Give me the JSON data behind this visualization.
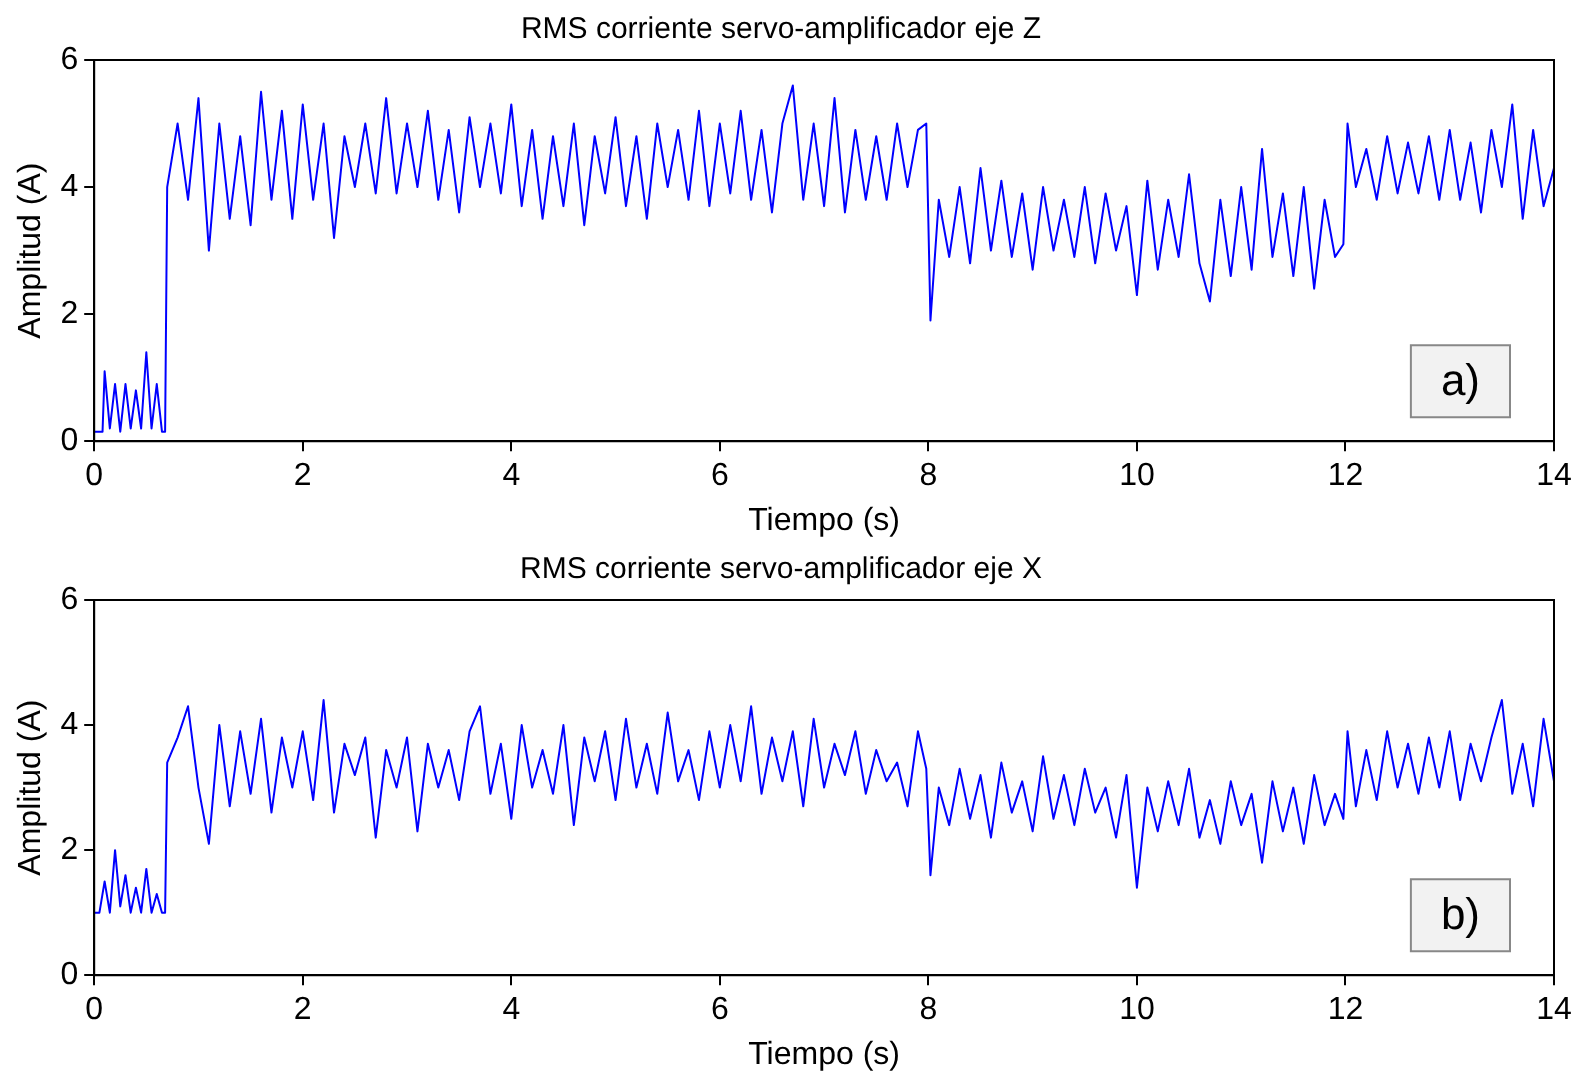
{
  "chart_data": [
    {
      "type": "line",
      "title": "RMS corriente servo-amplificador eje Z",
      "xlabel": "Tiempo (s)",
      "ylabel": "Amplitud (A)",
      "color": "#0000ff",
      "marker": "none",
      "grid": false,
      "xlim": [
        0,
        14
      ],
      "xticks": [
        0,
        2,
        4,
        6,
        8,
        10,
        12,
        14
      ],
      "ylim": [
        0,
        6
      ],
      "yticks": [
        0,
        2,
        4,
        6
      ],
      "annotations": [
        "a)"
      ],
      "x": [
        0,
        0.08,
        0.1,
        0.15,
        0.2,
        0.25,
        0.3,
        0.35,
        0.4,
        0.45,
        0.5,
        0.55,
        0.6,
        0.65,
        0.68,
        0.7,
        0.8,
        0.9,
        1.0,
        1.1,
        1.2,
        1.3,
        1.4,
        1.5,
        1.6,
        1.7,
        1.8,
        1.9,
        2.0,
        2.1,
        2.2,
        2.3,
        2.4,
        2.5,
        2.6,
        2.7,
        2.8,
        2.9,
        3.0,
        3.1,
        3.2,
        3.3,
        3.4,
        3.5,
        3.6,
        3.7,
        3.8,
        3.9,
        4.0,
        4.1,
        4.2,
        4.3,
        4.4,
        4.5,
        4.6,
        4.7,
        4.8,
        4.9,
        5.0,
        5.1,
        5.2,
        5.3,
        5.4,
        5.5,
        5.6,
        5.7,
        5.8,
        5.9,
        6.0,
        6.1,
        6.2,
        6.3,
        6.4,
        6.5,
        6.6,
        6.7,
        6.8,
        6.9,
        7.0,
        7.1,
        7.2,
        7.3,
        7.4,
        7.5,
        7.6,
        7.7,
        7.8,
        7.9,
        7.98,
        8.02,
        8.1,
        8.2,
        8.3,
        8.4,
        8.5,
        8.6,
        8.7,
        8.8,
        8.9,
        9.0,
        9.1,
        9.2,
        9.3,
        9.4,
        9.5,
        9.6,
        9.7,
        9.8,
        9.9,
        10.0,
        10.1,
        10.2,
        10.3,
        10.4,
        10.5,
        10.6,
        10.7,
        10.8,
        10.9,
        11.0,
        11.1,
        11.2,
        11.3,
        11.4,
        11.5,
        11.6,
        11.7,
        11.8,
        11.9,
        11.98,
        12.02,
        12.1,
        12.2,
        12.3,
        12.4,
        12.5,
        12.6,
        12.7,
        12.8,
        12.9,
        13.0,
        13.1,
        13.2,
        13.3,
        13.4,
        13.5,
        13.6,
        13.7,
        13.8,
        13.9,
        14.0
      ],
      "values": [
        0.15,
        0.15,
        1.1,
        0.2,
        0.9,
        0.15,
        0.9,
        0.2,
        0.8,
        0.2,
        1.4,
        0.2,
        0.9,
        0.15,
        0.15,
        4.0,
        5.0,
        3.8,
        5.4,
        3.0,
        5.0,
        3.5,
        4.8,
        3.4,
        5.5,
        3.8,
        5.2,
        3.5,
        5.3,
        3.8,
        5.0,
        3.2,
        4.8,
        4.0,
        5.0,
        3.9,
        5.4,
        3.9,
        5.0,
        4.0,
        5.2,
        3.8,
        4.9,
        3.6,
        5.1,
        4.0,
        5.0,
        3.9,
        5.3,
        3.7,
        4.9,
        3.5,
        4.8,
        3.7,
        5.0,
        3.4,
        4.8,
        3.9,
        5.1,
        3.7,
        4.8,
        3.5,
        5.0,
        4.0,
        4.9,
        3.8,
        5.2,
        3.7,
        5.0,
        3.9,
        5.2,
        3.8,
        4.9,
        3.6,
        5.0,
        5.6,
        3.8,
        5.0,
        3.7,
        5.4,
        3.6,
        4.9,
        3.8,
        4.8,
        3.8,
        5.0,
        4.0,
        4.9,
        5.0,
        1.9,
        3.8,
        2.9,
        4.0,
        2.8,
        4.3,
        3.0,
        4.1,
        2.9,
        3.9,
        2.7,
        4.0,
        3.0,
        3.8,
        2.9,
        4.0,
        2.8,
        3.9,
        3.0,
        3.7,
        2.3,
        4.1,
        2.7,
        3.8,
        2.9,
        4.2,
        2.8,
        2.2,
        3.8,
        2.6,
        4.0,
        2.7,
        4.6,
        2.9,
        3.9,
        2.6,
        4.0,
        2.4,
        3.8,
        2.9,
        3.1,
        5.0,
        4.0,
        4.6,
        3.8,
        4.8,
        3.9,
        4.7,
        3.9,
        4.8,
        3.8,
        4.9,
        3.8,
        4.7,
        3.6,
        4.9,
        4.0,
        5.3,
        3.5,
        4.9,
        3.7,
        4.3
      ]
    },
    {
      "type": "line",
      "title": "RMS corriente servo-amplificador eje X",
      "xlabel": "Tiempo (s)",
      "ylabel": "Amplitud (A)",
      "color": "#0000ff",
      "marker": "none",
      "grid": false,
      "xlim": [
        0,
        14
      ],
      "xticks": [
        0,
        2,
        4,
        6,
        8,
        10,
        12,
        14
      ],
      "ylim": [
        0,
        6
      ],
      "yticks": [
        0,
        2,
        4,
        6
      ],
      "annotations": [
        "b)"
      ],
      "x": [
        0,
        0.05,
        0.1,
        0.15,
        0.2,
        0.25,
        0.3,
        0.35,
        0.4,
        0.45,
        0.5,
        0.55,
        0.6,
        0.65,
        0.68,
        0.7,
        0.8,
        0.9,
        1.0,
        1.1,
        1.2,
        1.3,
        1.4,
        1.5,
        1.6,
        1.7,
        1.8,
        1.9,
        2.0,
        2.1,
        2.2,
        2.3,
        2.4,
        2.5,
        2.6,
        2.7,
        2.8,
        2.9,
        3.0,
        3.1,
        3.2,
        3.3,
        3.4,
        3.5,
        3.6,
        3.7,
        3.8,
        3.9,
        4.0,
        4.1,
        4.2,
        4.3,
        4.4,
        4.5,
        4.6,
        4.7,
        4.8,
        4.9,
        5.0,
        5.1,
        5.2,
        5.3,
        5.4,
        5.5,
        5.6,
        5.7,
        5.8,
        5.9,
        6.0,
        6.1,
        6.2,
        6.3,
        6.4,
        6.5,
        6.6,
        6.7,
        6.8,
        6.9,
        7.0,
        7.1,
        7.2,
        7.3,
        7.4,
        7.5,
        7.6,
        7.7,
        7.8,
        7.9,
        7.98,
        8.02,
        8.1,
        8.2,
        8.3,
        8.4,
        8.5,
        8.6,
        8.7,
        8.8,
        8.9,
        9.0,
        9.1,
        9.2,
        9.3,
        9.4,
        9.5,
        9.6,
        9.7,
        9.8,
        9.9,
        10.0,
        10.1,
        10.2,
        10.3,
        10.4,
        10.5,
        10.6,
        10.7,
        10.8,
        10.9,
        11.0,
        11.1,
        11.2,
        11.3,
        11.4,
        11.5,
        11.6,
        11.7,
        11.8,
        11.9,
        11.98,
        12.02,
        12.1,
        12.2,
        12.3,
        12.4,
        12.5,
        12.6,
        12.7,
        12.8,
        12.9,
        13.0,
        13.1,
        13.2,
        13.3,
        13.4,
        13.5,
        13.6,
        13.7,
        13.8,
        13.9,
        14.0
      ],
      "values": [
        1.0,
        1.0,
        1.5,
        1.0,
        2.0,
        1.1,
        1.6,
        1.0,
        1.4,
        1.0,
        1.7,
        1.0,
        1.3,
        1.0,
        1.0,
        3.4,
        3.8,
        4.3,
        3.0,
        2.1,
        4.0,
        2.7,
        3.9,
        2.9,
        4.1,
        2.6,
        3.8,
        3.0,
        3.9,
        2.8,
        4.4,
        2.6,
        3.7,
        3.2,
        3.8,
        2.2,
        3.6,
        3.0,
        3.8,
        2.3,
        3.7,
        3.0,
        3.6,
        2.8,
        3.9,
        4.3,
        2.9,
        3.7,
        2.5,
        4.0,
        3.0,
        3.6,
        2.9,
        4.0,
        2.4,
        3.8,
        3.1,
        3.9,
        2.8,
        4.1,
        3.0,
        3.7,
        2.9,
        4.2,
        3.1,
        3.6,
        2.8,
        3.9,
        3.0,
        4.0,
        3.1,
        4.3,
        2.9,
        3.8,
        3.1,
        3.9,
        2.7,
        4.1,
        3.0,
        3.7,
        3.2,
        3.9,
        2.9,
        3.6,
        3.1,
        3.4,
        2.7,
        3.9,
        3.3,
        1.6,
        3.0,
        2.4,
        3.3,
        2.5,
        3.2,
        2.2,
        3.4,
        2.6,
        3.1,
        2.3,
        3.5,
        2.5,
        3.2,
        2.4,
        3.3,
        2.6,
        3.0,
        2.2,
        3.2,
        1.4,
        3.0,
        2.3,
        3.1,
        2.4,
        3.3,
        2.2,
        2.8,
        2.1,
        3.1,
        2.4,
        2.9,
        1.8,
        3.1,
        2.3,
        3.0,
        2.1,
        3.2,
        2.4,
        2.9,
        2.5,
        3.9,
        2.7,
        3.6,
        2.8,
        3.9,
        3.0,
        3.7,
        2.9,
        3.8,
        3.0,
        3.9,
        2.8,
        3.7,
        3.1,
        3.8,
        4.4,
        2.9,
        3.7,
        2.7,
        4.1,
        3.1
      ]
    }
  ]
}
